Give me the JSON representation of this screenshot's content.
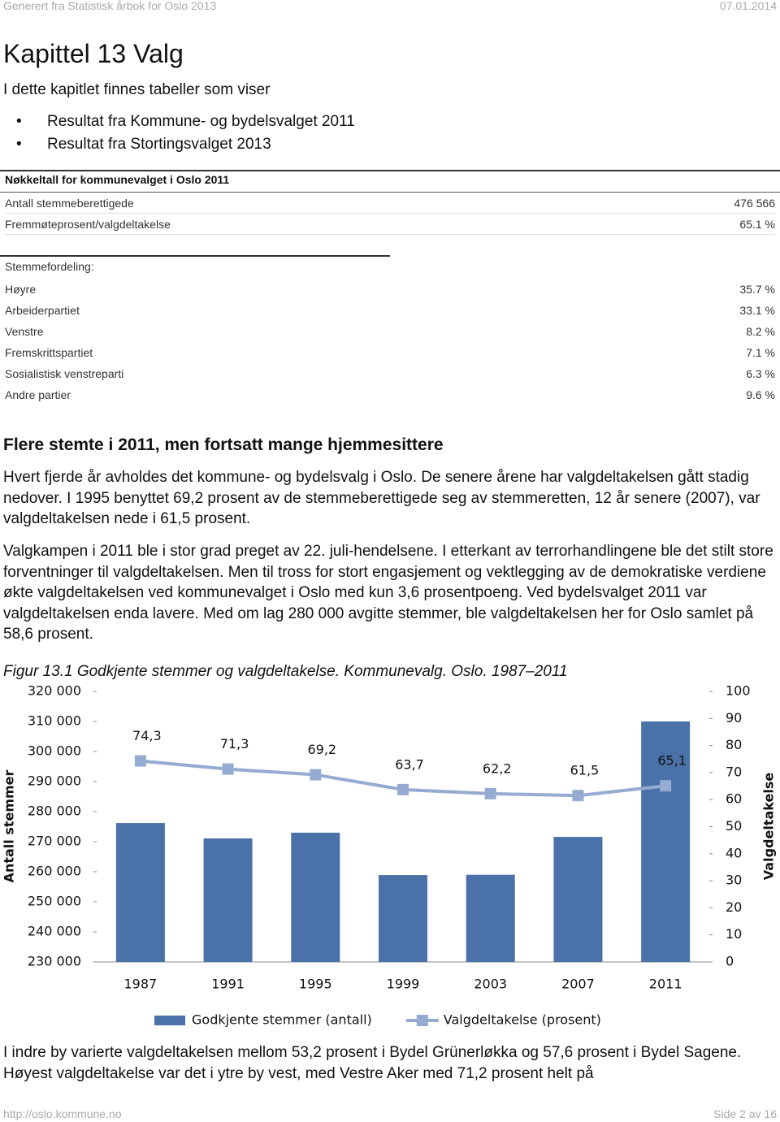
{
  "header": {
    "left": "Generert fra Statistisk årbok for Oslo 2013",
    "right": "07.01.2014"
  },
  "title": "Kapittel 13 Valg",
  "intro": "I dette kapitlet finnes tabeller som viser",
  "bullets": [
    "Resultat fra Kommune- og bydelsvalget 2011",
    "Resultat fra Stortingsvalget 2013"
  ],
  "key_table": {
    "title": "Nøkkeltall for kommunevalget i Oslo 2011",
    "rows": [
      [
        "Antall stemmeberettigede",
        "476 566"
      ],
      [
        "Fremmøteprosent/valgdeltakelse",
        "65.1 %"
      ]
    ]
  },
  "distribution": {
    "title": "Stemmefordeling:",
    "rows": [
      [
        "Høyre",
        "35.7 %"
      ],
      [
        "Arbeiderpartiet",
        "33.1 %"
      ],
      [
        "Venstre",
        "8.2 %"
      ],
      [
        "Fremskrittspartiet",
        "7.1 %"
      ],
      [
        "Sosialistisk venstreparti",
        "6.3 %"
      ],
      [
        "Andre partier",
        "9.6 %"
      ]
    ]
  },
  "section_title": "Flere stemte i 2011, men fortsatt mange hjemmesittere",
  "paragraphs": [
    "Hvert fjerde år avholdes det kommune- og bydelsvalg i Oslo. De senere årene har valgdeltakelsen gått stadig nedover. I 1995 benyttet 69,2 prosent av de stemmeberettigede seg av stemmeretten, 12 år senere (2007), var valgdeltakelsen nede i 61,5 prosent.",
    "Valgkampen i 2011 ble i stor grad preget av 22. juli-hendelsene. I etterkant av terrorhandlingene ble det stilt store forventninger til valgdeltakelsen. Men til tross for stort engasjement og vektlegging av de demokratiske verdiene økte valgdeltakelsen ved kommunevalget i Oslo med kun 3,6 prosentpoeng. Ved bydelsvalget 2011 var valgdeltakelsen enda lavere. Med om lag 280 000 avgitte stemmer, ble valgdeltakelsen her for Oslo samlet på 58,6 prosent."
  ],
  "chart_data": {
    "type": "combo",
    "title": "Figur 13.1 Godkjente stemmer og valgdeltakelse. Kommunevalg. Oslo. 1987–2011",
    "ylabel": "Antall stemmer",
    "y2label": "Valgdeltakelse",
    "categories": [
      "1987",
      "1991",
      "1995",
      "1999",
      "2003",
      "2007",
      "2011"
    ],
    "series": [
      {
        "name": "Godkjente stemmer (antall)",
        "type": "bar",
        "color": "#4a72a8",
        "values": [
          276200,
          271100,
          273000,
          258900,
          259000,
          271600,
          310000
        ]
      },
      {
        "name": "Valgdeltakelse (prosent)",
        "type": "line",
        "axis": "y2",
        "color": "#95abd1",
        "values": [
          74.3,
          71.3,
          69.2,
          63.7,
          62.2,
          61.5,
          65.1
        ],
        "value_labels": [
          "74,3",
          "71,3",
          "69,2",
          "63,7",
          "62,2",
          "61,5",
          "65,1"
        ]
      }
    ],
    "ylim": [
      230000,
      320000
    ],
    "yticks": [
      {
        "value": 230000,
        "label": "230 000"
      },
      {
        "value": 240000,
        "label": "240 000"
      },
      {
        "value": 250000,
        "label": "250 000"
      },
      {
        "value": 260000,
        "label": "260 000"
      },
      {
        "value": 270000,
        "label": "270 000"
      },
      {
        "value": 280000,
        "label": "280 000"
      },
      {
        "value": 290000,
        "label": "290 000"
      },
      {
        "value": 300000,
        "label": "300 000"
      },
      {
        "value": 310000,
        "label": "310 000"
      },
      {
        "value": 320000,
        "label": "320 000"
      }
    ],
    "y2lim": [
      0,
      100
    ],
    "y2ticks": [
      0,
      10,
      20,
      30,
      40,
      50,
      60,
      70,
      80,
      90,
      100
    ],
    "grid": false,
    "legend": "bottom"
  },
  "closing": "I indre by varierte valgdeltakelsen mellom 53,2 prosent i Bydel Grünerløkka og 57,6 prosent i Bydel Sagene. Høyest valgdeltakelse var det i ytre by vest, med Vestre Aker med 71,2 prosent helt på",
  "footer": {
    "left": "http://oslo.kommune.no",
    "right": "Side 2 av 16"
  }
}
